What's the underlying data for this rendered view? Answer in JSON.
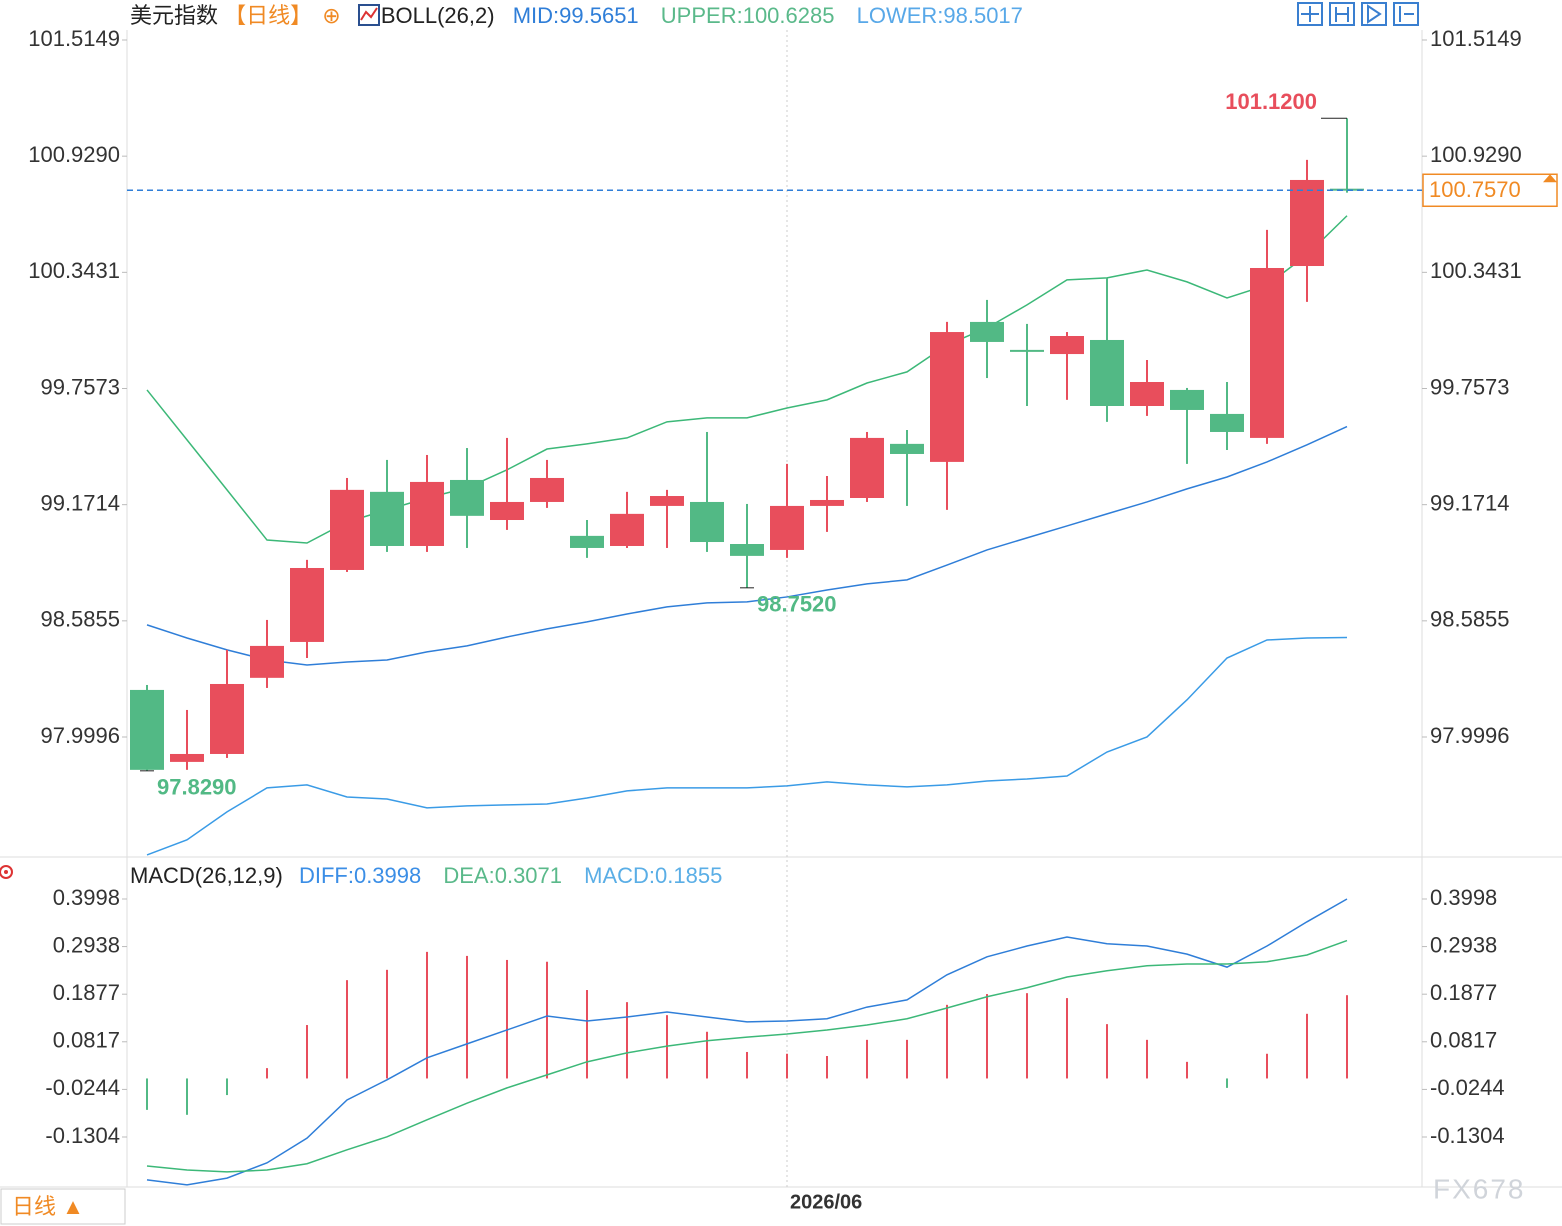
{
  "chart_data": [
    {
      "type": "candlestick",
      "title": "美元指数",
      "period": "【日线】",
      "indicator": "BOLL(26,2)",
      "categories": [
        null,
        null,
        null,
        null,
        null,
        null,
        null,
        null,
        null,
        null,
        null,
        null,
        null,
        null,
        null,
        null,
        "2026/06",
        null,
        null,
        null,
        null,
        null,
        null,
        null,
        null,
        null,
        null,
        null,
        null,
        null,
        null
      ],
      "open": [
        98.237,
        97.874,
        97.914,
        98.298,
        98.479,
        98.842,
        99.236,
        98.963,
        99.296,
        99.094,
        99.185,
        99.014,
        98.963,
        99.165,
        99.185,
        98.973,
        98.943,
        99.165,
        99.205,
        99.478,
        99.387,
        100.093,
        99.952,
        99.931,
        100.002,
        99.669,
        99.75,
        99.629,
        99.508,
        100.375,
        100.765
      ],
      "high": [
        98.262,
        98.136,
        98.439,
        98.59,
        98.893,
        99.306,
        99.397,
        99.422,
        99.457,
        99.508,
        99.397,
        99.094,
        99.236,
        99.246,
        99.538,
        99.175,
        99.377,
        99.316,
        99.538,
        99.548,
        100.093,
        100.204,
        100.083,
        100.042,
        100.315,
        99.901,
        99.76,
        99.79,
        100.557,
        100.91,
        101.12
      ],
      "low": [
        97.829,
        97.834,
        97.894,
        98.247,
        98.398,
        98.832,
        98.933,
        98.933,
        98.953,
        99.044,
        99.155,
        98.903,
        98.953,
        98.953,
        98.933,
        98.752,
        98.903,
        99.034,
        99.185,
        99.165,
        99.145,
        99.81,
        99.669,
        99.7,
        99.589,
        99.619,
        99.377,
        99.447,
        99.478,
        100.194,
        100.745
      ],
      "close": [
        97.834,
        97.914,
        98.267,
        98.459,
        98.852,
        99.246,
        98.963,
        99.286,
        99.115,
        99.185,
        99.306,
        98.953,
        99.125,
        99.215,
        98.983,
        98.913,
        99.165,
        99.195,
        99.508,
        99.427,
        100.042,
        99.992,
        99.942,
        100.022,
        99.669,
        99.79,
        99.649,
        99.538,
        100.365,
        100.809,
        100.757
      ],
      "up_color": "#e84e5c",
      "down_color": "#52b985",
      "series": [
        {
          "name": "MID:99.5651",
          "color": "#2f7ed8",
          "values": [
            98.565,
            98.499,
            98.439,
            98.388,
            98.363,
            98.378,
            98.388,
            98.429,
            98.459,
            98.504,
            98.545,
            98.58,
            98.62,
            98.656,
            98.676,
            98.681,
            98.706,
            98.741,
            98.772,
            98.792,
            98.867,
            98.943,
            99.004,
            99.064,
            99.125,
            99.185,
            99.251,
            99.311,
            99.387,
            99.473,
            99.5651
          ]
        },
        {
          "name": "UPPER:100.6285",
          "color": "#3cb878",
          "values": [
            99.75,
            99.498,
            99.246,
            98.993,
            98.978,
            99.084,
            99.145,
            99.205,
            99.256,
            99.347,
            99.452,
            99.478,
            99.508,
            99.589,
            99.609,
            99.609,
            99.659,
            99.7,
            99.785,
            99.841,
            99.977,
            100.063,
            100.179,
            100.305,
            100.315,
            100.355,
            100.295,
            100.214,
            100.279,
            100.431,
            100.6285
          ]
        },
        {
          "name": "LOWER:98.5017",
          "color": "#3a9be6",
          "values": [
            97.405,
            97.481,
            97.622,
            97.743,
            97.758,
            97.697,
            97.687,
            97.642,
            97.652,
            97.657,
            97.662,
            97.692,
            97.728,
            97.743,
            97.743,
            97.743,
            97.753,
            97.773,
            97.758,
            97.748,
            97.758,
            97.778,
            97.788,
            97.803,
            97.924,
            98.0,
            98.187,
            98.398,
            98.489,
            98.499,
            98.5017
          ]
        }
      ],
      "ylim": [
        97.4045,
        101.5653
      ],
      "yticks": [
        {
          "value": 101.5149,
          "label": "101.5149"
        },
        {
          "value": 100.929,
          "label": "100.9290"
        },
        100.3431,
        99.7573,
        99.1714,
        98.5855,
        97.9996
      ],
      "last_price": {
        "value": 100.757,
        "label": "100.7570"
      },
      "annotations": [
        {
          "value": 101.12,
          "label": "101.1200"
        },
        {
          "value": 98.752,
          "label": "98.7520"
        },
        {
          "value": 97.829,
          "label": "97.8290"
        }
      ]
    },
    {
      "type": "macd",
      "title": "MACD(26,12,9)",
      "series": [
        {
          "name": "DIFF:0.3998",
          "color": "#2f7ed8",
          "values": [
            -0.226,
            -0.237,
            -0.222,
            -0.188,
            -0.133,
            -0.048,
            -0.003,
            0.046,
            0.077,
            0.108,
            0.139,
            0.128,
            0.137,
            0.148,
            0.137,
            0.126,
            0.128,
            0.133,
            0.159,
            0.175,
            0.231,
            0.271,
            0.295,
            0.315,
            0.3,
            0.295,
            0.277,
            0.248,
            0.295,
            0.349,
            0.3998
          ]
        },
        {
          "name": "DEA:0.3071",
          "color": "#3cb878",
          "values": [
            -0.195,
            -0.204,
            -0.208,
            -0.204,
            -0.19,
            -0.159,
            -0.13,
            -0.092,
            -0.055,
            -0.021,
            0.008,
            0.037,
            0.057,
            0.072,
            0.084,
            0.092,
            0.099,
            0.108,
            0.119,
            0.133,
            0.157,
            0.182,
            0.202,
            0.226,
            0.24,
            0.251,
            0.255,
            0.255,
            0.26,
            0.275,
            0.3071
          ]
        }
      ],
      "histogram": {
        "name": "MACD:0.1855",
        "color": "#5aaee6",
        "up_color": "#e84e5c",
        "down_color": "#52b985",
        "values": [
          -0.07,
          -0.081,
          -0.037,
          0.023,
          0.119,
          0.219,
          0.242,
          0.282,
          0.273,
          0.264,
          0.26,
          0.197,
          0.17,
          0.141,
          0.104,
          0.059,
          0.055,
          0.05,
          0.086,
          0.086,
          0.164,
          0.188,
          0.19,
          0.179,
          0.121,
          0.086,
          0.037,
          -0.021,
          0.055,
          0.144,
          0.1855
        ]
      },
      "ylim": [
        -0.2418,
        0.4911
      ],
      "yticks": [
        0.3998,
        0.2938,
        0.1877,
        0.0817,
        -0.0244,
        -0.1304
      ]
    }
  ],
  "footer": {
    "period_button": "日线 ▲",
    "watermark": "FX678"
  }
}
